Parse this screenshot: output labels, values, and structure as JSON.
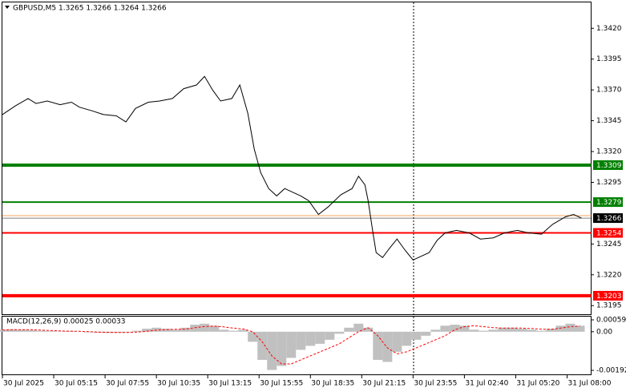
{
  "chart_data": [
    {
      "type": "line",
      "title": "GBPUSD,M5  1.3265 1.3266 1.3264 1.3266",
      "xlim": [
        0,
        367
      ],
      "xticks": [
        {
          "value": 0,
          "label": "30 Jul 2025"
        },
        {
          "value": 32,
          "label": "30 Jul 05:15"
        },
        {
          "value": 64,
          "label": "30 Jul 07:55"
        },
        {
          "value": 96,
          "label": "30 Jul 10:35"
        },
        {
          "value": 128,
          "label": "30 Jul 13:15"
        },
        {
          "value": 160,
          "label": "30 Jul 15:55"
        },
        {
          "value": 192,
          "label": "30 Jul 18:35"
        },
        {
          "value": 224,
          "label": "30 Jul 21:15"
        },
        {
          "value": 256,
          "label": "30 Jul 23:55"
        },
        {
          "value": 288,
          "label": "31 Jul 02:40"
        },
        {
          "value": 320,
          "label": "31 Jul 05:20"
        },
        {
          "value": 352,
          "label": "31 Jul 08:00"
        }
      ],
      "ylim": [
        1.3188,
        1.3441
      ],
      "yticks": [
        {
          "value": 1.342,
          "label": "1.3420"
        },
        1.3395,
        {
          "value": 1.337,
          "label": "1.3370"
        },
        1.3345,
        {
          "value": 1.332,
          "label": "1.3320"
        },
        1.3295,
        1.3245,
        {
          "value": 1.322,
          "label": "1.3220"
        },
        1.3195
      ],
      "x": [
        0,
        8,
        16,
        21,
        28,
        36,
        43,
        48,
        56,
        63,
        71,
        77,
        83,
        91,
        98,
        106,
        113,
        121,
        126,
        131,
        136,
        143,
        148,
        153,
        157,
        161,
        166,
        171,
        176,
        181,
        186,
        191,
        197,
        203,
        211,
        218,
        222,
        226,
        228,
        231,
        233,
        237,
        241,
        246,
        251,
        256,
        261,
        266,
        271,
        276,
        283,
        291,
        298,
        306,
        313,
        321,
        328,
        336,
        343,
        351,
        356,
        361
      ],
      "series": [
        {
          "color": "#000000",
          "values": [
            1.335,
            1.3357,
            1.3363,
            1.3359,
            1.3361,
            1.3358,
            1.336,
            1.3356,
            1.3353,
            1.335,
            1.3349,
            1.3344,
            1.3355,
            1.336,
            1.3361,
            1.3363,
            1.3371,
            1.3374,
            1.3381,
            1.337,
            1.3361,
            1.3363,
            1.3374,
            1.3351,
            1.3322,
            1.3303,
            1.329,
            1.3284,
            1.329,
            1.3287,
            1.3284,
            1.328,
            1.3269,
            1.3275,
            1.3285,
            1.329,
            1.33,
            1.3293,
            1.328,
            1.3254,
            1.3238,
            1.3234,
            1.3241,
            1.3249,
            1.324,
            1.3232,
            1.3235,
            1.3238,
            1.3248,
            1.3254,
            1.3256,
            1.3254,
            1.3249,
            1.325,
            1.3254,
            1.3256,
            1.3254,
            1.3253,
            1.3261,
            1.3267,
            1.3269,
            1.3266
          ]
        }
      ],
      "levels": [
        {
          "value": 1.3309,
          "color": "#008000",
          "width": 4,
          "labeled": true
        },
        {
          "value": 1.3279,
          "color": "#008000",
          "width": 2,
          "labeled": true
        },
        {
          "value": 1.3268,
          "color": "#f4a460",
          "width": 1,
          "labeled": false
        },
        {
          "value": 1.3266,
          "color": "#000000",
          "width": 0.5,
          "labeled": true
        },
        {
          "value": 1.3254,
          "color": "#ff0000",
          "width": 2,
          "labeled": true
        },
        {
          "value": 1.3203,
          "color": "#ff0000",
          "width": 4,
          "labeled": true
        }
      ]
    },
    {
      "type": "macd",
      "title": "MACD(12,26,9) 0.00025 0.00033",
      "xlim": [
        0,
        367
      ],
      "ylim": [
        -0.00212,
        0.00075
      ],
      "yticks": [
        0.00059,
        {
          "value": 0,
          "label": "0.00"
        },
        -0.00192
      ],
      "x": [
        0,
        6,
        12,
        18,
        24,
        30,
        36,
        42,
        48,
        54,
        60,
        66,
        72,
        78,
        84,
        90,
        96,
        102,
        108,
        114,
        120,
        126,
        132,
        138,
        144,
        150,
        156,
        162,
        168,
        174,
        180,
        186,
        192,
        198,
        204,
        210,
        216,
        222,
        228,
        234,
        240,
        246,
        252,
        258,
        264,
        270,
        276,
        282,
        288,
        294,
        300,
        306,
        312,
        318,
        324,
        330,
        336,
        342,
        348,
        354,
        360
      ],
      "series": [
        {
          "kind": "bar",
          "color": "#c0c0c0",
          "values": [
            0.0001,
            0.00012,
            0.0001,
            8e-05,
            5e-05,
            3e-05,
            2e-05,
            3e-05,
            0.0,
            -3e-05,
            -5e-05,
            -6e-05,
            -5e-05,
            -3e-05,
            5e-05,
            0.00015,
            0.0002,
            0.00015,
            0.0001,
            0.0002,
            0.00035,
            0.0004,
            0.0003,
            0.0001,
            5e-05,
            0.0001,
            -0.0005,
            -0.0014,
            -0.0019,
            -0.0017,
            -0.0013,
            -0.0009,
            -0.0007,
            -0.0006,
            -0.0004,
            -0.0001,
            0.0002,
            0.0004,
            0.0002,
            -0.0014,
            -0.0015,
            -0.001,
            -0.0007,
            -0.0004,
            -0.0002,
            0.0001,
            0.0003,
            0.00035,
            0.0003,
            0.0001,
            5e-05,
            0.0001,
            0.0002,
            0.0002,
            0.00015,
            0.0001,
            5e-05,
            0.00015,
            0.0003,
            0.0004,
            0.0003
          ]
        },
        {
          "kind": "line",
          "color": "#ff0000",
          "dashed": true,
          "values": [
            8e-05,
            0.0001,
            0.0001,
            0.0001,
            8e-05,
            6e-05,
            4e-05,
            3e-05,
            2e-05,
            0.0,
            -2e-05,
            -3e-05,
            -4e-05,
            -4e-05,
            -2e-05,
            2e-05,
            8e-05,
            0.00011,
            0.00012,
            0.00013,
            0.0002,
            0.00026,
            0.00028,
            0.00024,
            0.00018,
            0.00014,
            0.0,
            -0.0005,
            -0.0012,
            -0.0016,
            -0.0016,
            -0.0014,
            -0.0012,
            -0.001,
            -0.0008,
            -0.0006,
            -0.0003,
            0.0,
            0.0002,
            -0.0002,
            -0.0008,
            -0.0011,
            -0.001,
            -0.0008,
            -0.0006,
            -0.0004,
            -0.0002,
            0.0001,
            0.00025,
            0.0003,
            0.00025,
            0.0002,
            0.00018,
            0.00018,
            0.00018,
            0.00016,
            0.00013,
            0.00012,
            0.00018,
            0.00025,
            0.00028
          ]
        }
      ]
    }
  ]
}
